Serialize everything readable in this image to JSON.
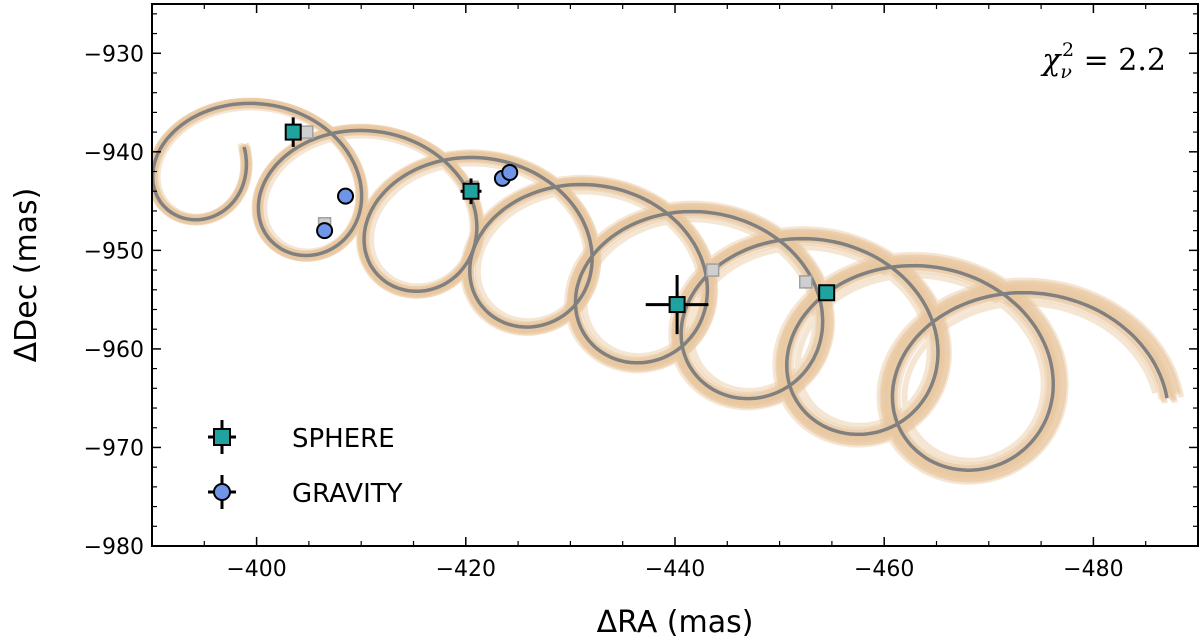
{
  "chart_data": {
    "type": "scatter",
    "xlabel": "ΔRA (mas)",
    "ylabel": "ΔDec (mas)",
    "xlim": [
      -390,
      -490
    ],
    "ylim": [
      -980,
      -925
    ],
    "x_ticks": [
      -400,
      -420,
      -440,
      -460,
      -480
    ],
    "y_ticks": [
      -930,
      -940,
      -950,
      -960,
      -970,
      -980
    ],
    "x_tick_labels": [
      "−400",
      "−420",
      "−440",
      "−460",
      "−480"
    ],
    "y_tick_labels": [
      "−930",
      "−940",
      "−950",
      "−960",
      "−970",
      "−980"
    ],
    "annotation": {
      "chi": "χ",
      "sub": "ν",
      "sup": "2",
      "rest": " = 2.2"
    },
    "legend_position": "bottom-left",
    "series": [
      {
        "name": "SPHERE",
        "marker": "square",
        "color": "#20a39e",
        "points": [
          {
            "x": -403.5,
            "y": -938.0,
            "xerr": 0.6,
            "yerr": 1.5
          },
          {
            "x": -420.5,
            "y": -944.0,
            "xerr": 1.0,
            "yerr": 1.3
          },
          {
            "x": -440.2,
            "y": -955.5,
            "xerr": 3.0,
            "yerr": 3.0
          },
          {
            "x": -454.5,
            "y": -954.3,
            "xerr": 0.4,
            "yerr": 0.8
          }
        ]
      },
      {
        "name": "GRAVITY",
        "marker": "circle",
        "color": "#6f95e8",
        "points": [
          {
            "x": -406.5,
            "y": -948.0,
            "xerr": 0.1,
            "yerr": 0.1
          },
          {
            "x": -408.5,
            "y": -944.5,
            "xerr": 0.1,
            "yerr": 0.1
          },
          {
            "x": -423.5,
            "y": -942.7,
            "xerr": 0.1,
            "yerr": 0.1
          },
          {
            "x": -424.2,
            "y": -942.1,
            "xerr": 0.1,
            "yerr": 0.1
          }
        ]
      }
    ],
    "model_positions": [
      {
        "x": -404.8,
        "y": -938.0
      },
      {
        "x": -406.5,
        "y": -947.3
      },
      {
        "x": -420.6,
        "y": -943.6
      },
      {
        "x": -443.6,
        "y": -952.0
      },
      {
        "x": -452.5,
        "y": -953.2
      }
    ],
    "orbit_model": {
      "color": "#808080",
      "posterior_color": "#e8c8a0",
      "start": [
        -392,
        -939.5
      ],
      "end": [
        -476.5,
        -965
      ],
      "loops": 8,
      "radius": 6.8,
      "radius_growth": 0.55
    }
  }
}
